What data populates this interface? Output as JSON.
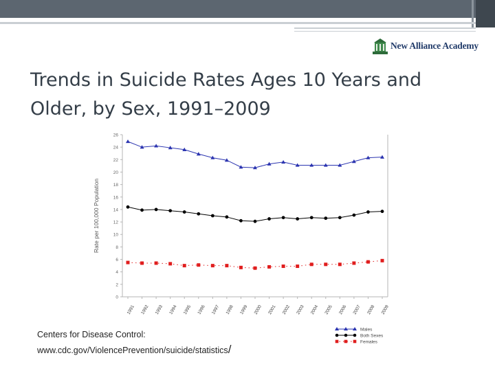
{
  "slide": {
    "title_line1": "Trends in Suicide Rates Ages 10 Years and",
    "title_line2": "Older, by Sex, 1991–2009",
    "logo_text": "New Alliance Academy",
    "source_line1": "Centers for Disease Control:",
    "source_line2": "www.cdc.gov/ViolencePrevention/suicide/statistics",
    "source_trailing": "/"
  },
  "colors": {
    "males": "#2b34b0",
    "both": "#000000",
    "females": "#e01e1e",
    "axis": "#b5b5b5"
  },
  "chart_data": {
    "type": "line",
    "title": "",
    "xlabel": "",
    "ylabel": "Rate per 100,000 Population",
    "ylim": [
      0,
      26
    ],
    "yticks": [
      0,
      2,
      4,
      6,
      8,
      10,
      12,
      14,
      16,
      18,
      20,
      22,
      24,
      26
    ],
    "ytick_labels": [
      "0",
      "2",
      "4",
      "6",
      "8",
      "10",
      "12",
      "14",
      "16",
      "18",
      "20",
      "22",
      "24",
      "26"
    ],
    "categories": [
      "1991",
      "1992",
      "1993",
      "1994",
      "1995",
      "1996",
      "1997",
      "1998",
      "1999",
      "2000",
      "2001",
      "2002",
      "2003",
      "2004",
      "2005",
      "2006",
      "2007",
      "2008",
      "2009"
    ],
    "series": [
      {
        "name": "Males",
        "marker": "triangle",
        "values": [
          24.9,
          24.0,
          24.2,
          23.9,
          23.6,
          22.9,
          22.3,
          21.9,
          20.8,
          20.7,
          21.3,
          21.6,
          21.1,
          21.1,
          21.1,
          21.1,
          21.7,
          22.3,
          22.4
        ]
      },
      {
        "name": "Both Sexes",
        "marker": "circle",
        "values": [
          14.4,
          13.9,
          14.0,
          13.8,
          13.6,
          13.3,
          13.0,
          12.8,
          12.2,
          12.1,
          12.5,
          12.7,
          12.5,
          12.7,
          12.6,
          12.7,
          13.1,
          13.6,
          13.7
        ]
      },
      {
        "name": "Females",
        "marker": "square",
        "values": [
          5.5,
          5.4,
          5.4,
          5.3,
          5.0,
          5.1,
          5.0,
          5.0,
          4.7,
          4.6,
          4.8,
          4.9,
          4.9,
          5.2,
          5.2,
          5.2,
          5.4,
          5.6,
          5.8
        ]
      }
    ],
    "legend_position": "bottom-right"
  }
}
